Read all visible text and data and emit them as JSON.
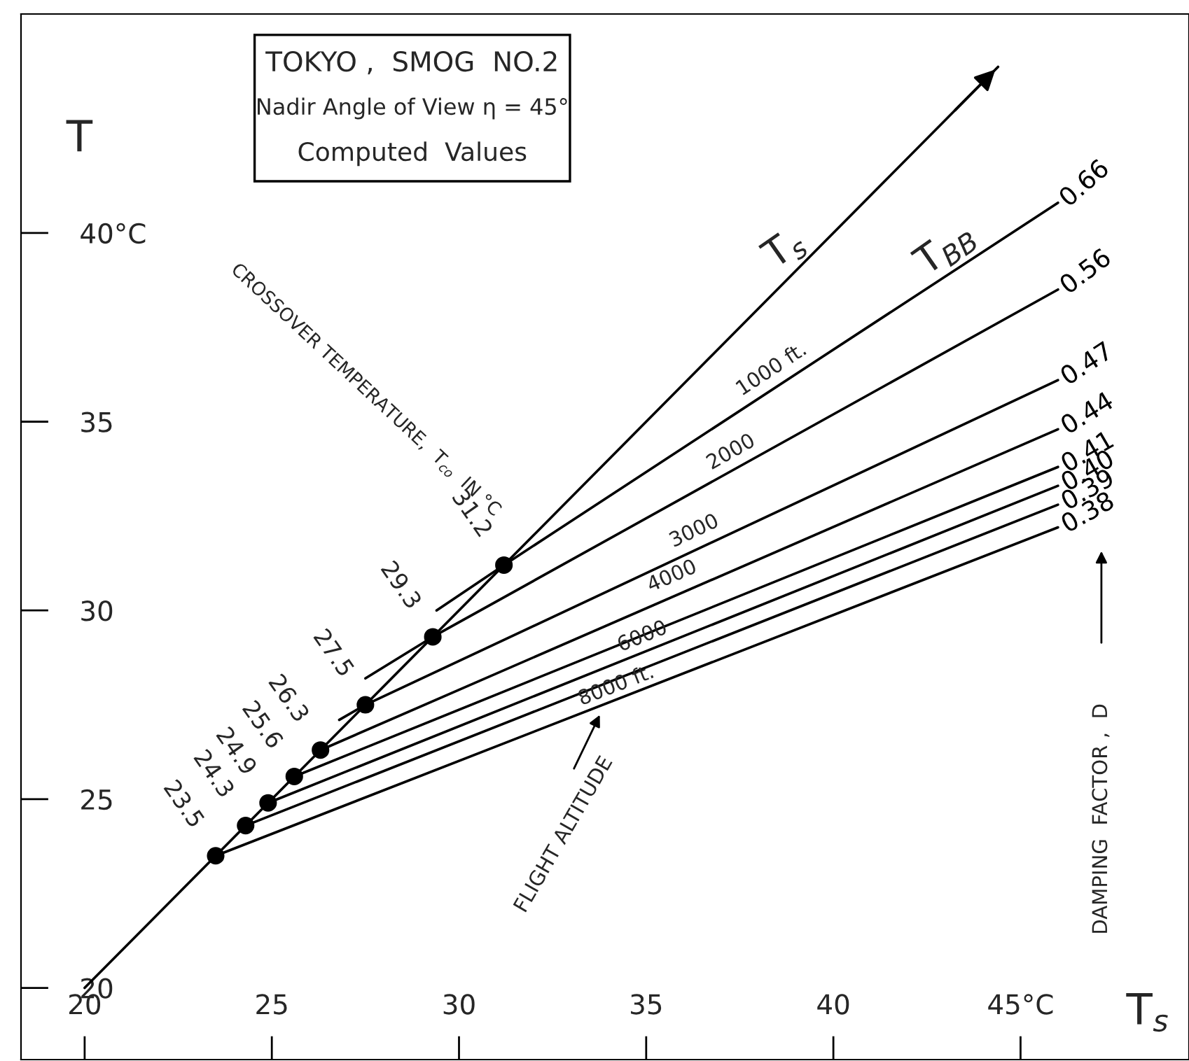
{
  "chart_data": {
    "type": "line",
    "title": "TOKYO ,  SMOG  NO.2",
    "subtitle": "Nadir Angle of View η = 45°",
    "xlabel": "T$_{s}$",
    "ylabel": "T",
    "xlim": [
      18.3,
      49.5
    ],
    "ylim": [
      18.1,
      45.8
    ],
    "xticks": [
      20,
      25,
      30,
      35,
      40,
      {
        "value": 45,
        "label": "45°C"
      }
    ],
    "yticks": [
      20,
      25,
      30,
      35,
      {
        "value": 40,
        "label": "40°C"
      }
    ],
    "grid": false,
    "series": [
      {
        "color": "#000000",
        "marker": "none",
        "x": [
          20,
          44.4
        ],
        "values": [
          20,
          44.4
        ]
      },
      {
        "name": "0.66",
        "color": "#000000",
        "marker": "none",
        "x": [
          29.4,
          31.2,
          46.0
        ],
        "values": [
          30.0,
          31.2,
          40.8
        ]
      },
      {
        "name": "0.56",
        "color": "#000000",
        "marker": "none",
        "x": [
          27.5,
          29.3,
          46.0
        ],
        "values": [
          28.2,
          29.3,
          38.5
        ]
      },
      {
        "name": "0.47",
        "color": "#000000",
        "marker": "none",
        "x": [
          26.8,
          27.5,
          46.0
        ],
        "values": [
          27.1,
          27.5,
          36.1
        ]
      },
      {
        "name": "0.44",
        "color": "#000000",
        "marker": "none",
        "x": [
          26.3,
          46.0
        ],
        "values": [
          26.3,
          34.8
        ]
      },
      {
        "name": "0.41",
        "color": "#000000",
        "marker": "none",
        "x": [
          25.6,
          46.0
        ],
        "values": [
          25.6,
          33.8
        ]
      },
      {
        "name": "0.40",
        "color": "#000000",
        "marker": "none",
        "x": [
          24.9,
          46.0
        ],
        "values": [
          24.9,
          33.3
        ]
      },
      {
        "name": "0.39",
        "color": "#000000",
        "marker": "none",
        "x": [
          24.3,
          46.0
        ],
        "values": [
          24.3,
          32.8
        ]
      },
      {
        "name": "0.38",
        "color": "#000000",
        "marker": "none",
        "x": [
          23.5,
          46.0
        ],
        "values": [
          23.5,
          32.2
        ]
      },
      {
        "type": "scatter",
        "color": "#000000",
        "marker": "circle",
        "x": [
          31.2,
          29.3,
          27.5,
          26.3,
          25.6,
          24.9,
          24.3,
          23.5
        ],
        "values": [
          31.2,
          29.3,
          27.5,
          26.3,
          25.6,
          24.9,
          24.3,
          23.5
        ],
        "value_labels": [
          "31.2",
          "29.3",
          "27.5",
          "26.3",
          "25.6",
          "24.9",
          "24.3",
          "23.5"
        ]
      }
    ],
    "annotations": [
      "Computed  Values",
      "CROSSOVER TEMPERATURE,  T$_{co}$  IN °C",
      "FLIGHT ALTITUDE",
      "DAMPING  FACTOR ,  D",
      "T$_{s}$",
      "T$_{BB}$",
      {
        "text": "1000 ft.",
        "x": 38.5,
        "y": 36.0
      },
      {
        "text": "2000",
        "x": 37.4,
        "y": 33.8
      },
      {
        "text": "3000",
        "x": 36.4,
        "y": 31.7
      },
      {
        "text": "4000",
        "x": 35.8,
        "y": 30.5
      },
      {
        "text": "6000",
        "x": 35.0,
        "y": 28.9
      },
      {
        "text": "8000 ft.",
        "x": 34.3,
        "y": 27.6
      }
    ]
  }
}
